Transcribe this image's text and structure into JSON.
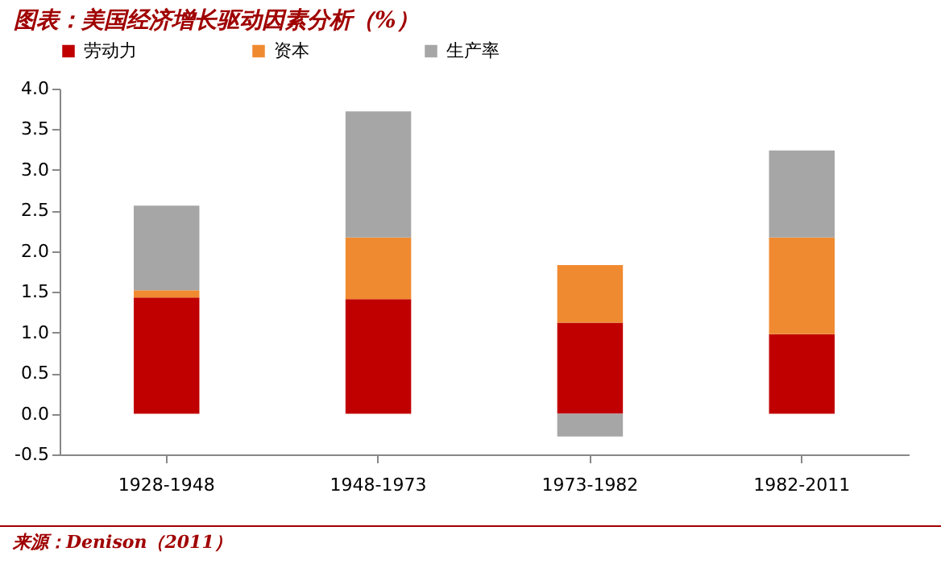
{
  "chart_data": {
    "type": "bar",
    "title": "图表：美国经济增长驱动因素分析（%）",
    "stacked": true,
    "legend": "top",
    "grid": false,
    "categories": [
      "1928-1948",
      "1948-1973",
      "1973-1982",
      "1982-2011"
    ],
    "series": [
      {
        "name": "劳动力",
        "color": "#c00000",
        "values": [
          1.43,
          1.41,
          1.12,
          0.98
        ]
      },
      {
        "name": "资本",
        "color": "#f08a30",
        "values": [
          0.09,
          0.76,
          0.71,
          1.19
        ]
      },
      {
        "name": "生产率",
        "color": "#a6a6a6",
        "values": [
          1.04,
          1.55,
          -0.28,
          1.07
        ]
      }
    ],
    "ylim": [
      -0.5,
      4.0
    ],
    "yticks": [
      -0.5,
      {
        "value": 0,
        "label": "0.0"
      },
      0.5,
      {
        "value": 1,
        "label": "1.0"
      },
      1.5,
      {
        "value": 2,
        "label": "2.0"
      },
      2.5,
      {
        "value": 3,
        "label": "3.0"
      },
      3.5,
      {
        "value": 4,
        "label": "4.0"
      }
    ],
    "annotations": [
      "来源：Denison（2011）"
    ]
  }
}
